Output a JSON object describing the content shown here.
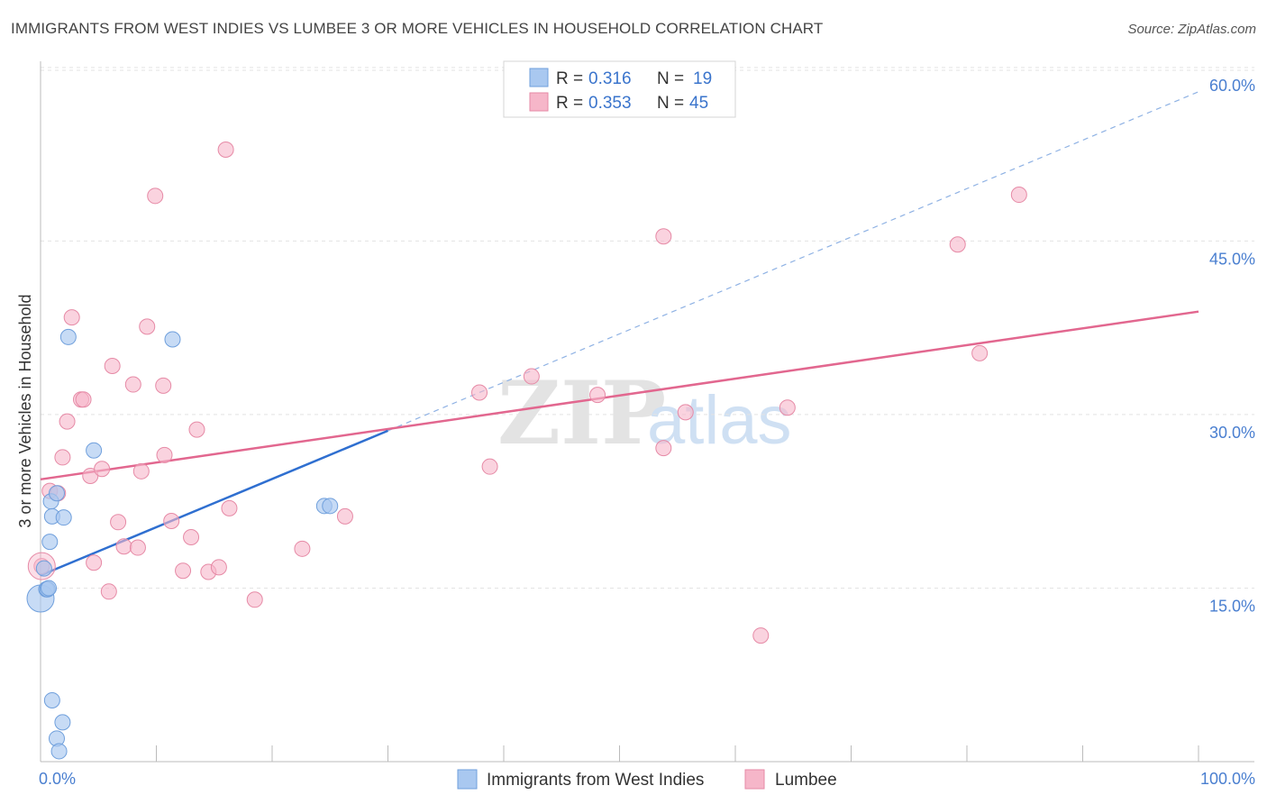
{
  "title": "IMMIGRANTS FROM WEST INDIES VS LUMBEE 3 OR MORE VEHICLES IN HOUSEHOLD CORRELATION CHART",
  "source": "Source: ZipAtlas.com",
  "watermark": {
    "zip": "ZIP",
    "atlas": "atlas"
  },
  "colors": {
    "blue_fill": "#a9c8f0",
    "blue_stroke": "#6f9fdc",
    "blue_line": "#2f6fd0",
    "pink_fill": "#f6b6c9",
    "pink_stroke": "#e68aa6",
    "pink_line": "#e2678f",
    "grid": "#e3e3e3",
    "tick_label": "#4a7fd0"
  },
  "legend": {
    "rows": [
      {
        "r_label": "R =",
        "r_value": "0.316",
        "n_label": "N =",
        "n_value": "19"
      },
      {
        "r_label": "R =",
        "r_value": "0.353",
        "n_label": "N =",
        "n_value": "45"
      }
    ]
  },
  "bottom_legend": [
    "Immigrants from West Indies",
    "Lumbee"
  ],
  "chart_data": {
    "type": "scatter",
    "title": "IMMIGRANTS FROM WEST INDIES VS LUMBEE 3 OR MORE VEHICLES IN HOUSEHOLD CORRELATION CHART",
    "xlabel": "",
    "ylabel": "3 or more Vehicles in Household",
    "xlim": [
      0,
      100
    ],
    "ylim": [
      0,
      61
    ],
    "x_tick_labels": [
      "0.0%",
      "100.0%"
    ],
    "y_ticks": [
      15,
      30,
      45,
      60
    ],
    "y_tick_labels": [
      "15.0%",
      "30.0%",
      "45.0%",
      "60.0%"
    ],
    "grid": true,
    "legend_position": "top-center",
    "series": [
      {
        "name": "Immigrants from West Indies",
        "color": "#a9c8f0",
        "points": [
          [
            0.0,
            14.1
          ],
          [
            0.3,
            16.7
          ],
          [
            0.5,
            14.9
          ],
          [
            0.6,
            14.9
          ],
          [
            0.7,
            15.0
          ],
          [
            0.8,
            19.0
          ],
          [
            0.9,
            22.5
          ],
          [
            1.0,
            5.3
          ],
          [
            1.0,
            21.2
          ],
          [
            1.4,
            23.2
          ],
          [
            1.4,
            2.0
          ],
          [
            1.6,
            0.9
          ],
          [
            1.9,
            3.4
          ],
          [
            2.0,
            21.1
          ],
          [
            2.4,
            36.7
          ],
          [
            4.6,
            26.9
          ],
          [
            11.4,
            36.5
          ],
          [
            24.5,
            22.1
          ],
          [
            25.0,
            22.1
          ]
        ],
        "trend": {
          "x": [
            0.0,
            30.0
          ],
          "y": [
            16.1,
            28.6
          ]
        },
        "trend_extended": {
          "x": [
            30.0,
            100.0
          ],
          "y": [
            28.6,
            57.9
          ]
        }
      },
      {
        "name": "Lumbee",
        "color": "#f6b6c9",
        "points": [
          [
            0.1,
            16.9
          ],
          [
            0.8,
            23.4
          ],
          [
            1.5,
            23.2
          ],
          [
            1.9,
            26.3
          ],
          [
            2.3,
            29.4
          ],
          [
            2.7,
            38.4
          ],
          [
            3.5,
            31.3
          ],
          [
            3.7,
            31.3
          ],
          [
            4.3,
            24.7
          ],
          [
            4.6,
            17.2
          ],
          [
            5.3,
            25.3
          ],
          [
            5.9,
            14.7
          ],
          [
            6.2,
            34.2
          ],
          [
            6.7,
            20.7
          ],
          [
            7.2,
            18.6
          ],
          [
            8.0,
            32.6
          ],
          [
            8.4,
            18.5
          ],
          [
            8.7,
            25.1
          ],
          [
            9.2,
            37.6
          ],
          [
            9.9,
            48.9
          ],
          [
            10.6,
            32.5
          ],
          [
            10.7,
            26.5
          ],
          [
            11.3,
            20.8
          ],
          [
            12.3,
            16.5
          ],
          [
            13.0,
            19.4
          ],
          [
            13.5,
            28.7
          ],
          [
            14.5,
            16.4
          ],
          [
            15.4,
            16.8
          ],
          [
            16.0,
            52.9
          ],
          [
            16.3,
            21.9
          ],
          [
            18.5,
            14.0
          ],
          [
            22.6,
            18.4
          ],
          [
            26.3,
            21.2
          ],
          [
            37.9,
            31.9
          ],
          [
            38.8,
            25.5
          ],
          [
            42.4,
            33.3
          ],
          [
            48.1,
            31.7
          ],
          [
            53.8,
            45.4
          ],
          [
            53.8,
            27.1
          ],
          [
            55.7,
            30.2
          ],
          [
            62.2,
            10.9
          ],
          [
            64.5,
            30.6
          ],
          [
            79.2,
            44.7
          ],
          [
            81.1,
            35.3
          ],
          [
            84.5,
            49.0
          ]
        ],
        "trend": {
          "x": [
            0.0,
            100.0
          ],
          "y": [
            24.4,
            38.9
          ]
        }
      }
    ]
  }
}
